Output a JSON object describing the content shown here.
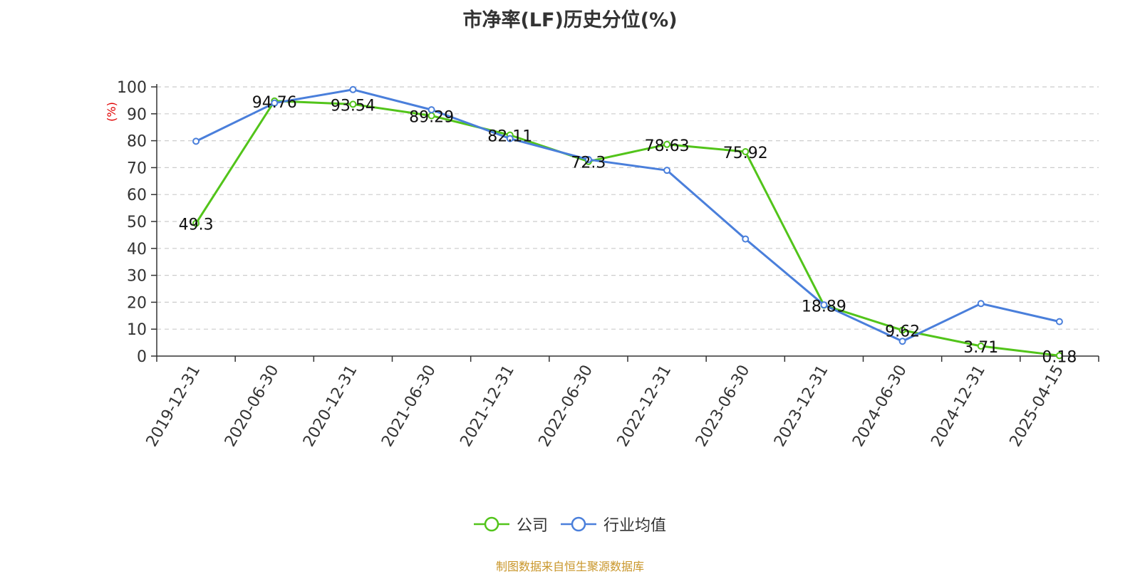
{
  "chart_data": {
    "type": "line",
    "title": "市净率(LF)历史分位(%)",
    "ylabel": "(%)",
    "categories": [
      "2019-12-31",
      "2020-06-30",
      "2020-12-31",
      "2021-06-30",
      "2021-12-31",
      "2022-06-30",
      "2022-12-31",
      "2023-06-30",
      "2023-12-31",
      "2024-06-30",
      "2024-12-31",
      "2025-04-15"
    ],
    "ylim": [
      0,
      100
    ],
    "yticks": [
      "0",
      "10",
      "20",
      "30",
      "40",
      "50",
      "60",
      "70",
      "80",
      "90",
      "100"
    ],
    "grid": true,
    "legend_position": "bottom",
    "series": [
      {
        "name": "公司",
        "color": "#52c41a",
        "values": [
          49.3,
          94.76,
          93.54,
          89.29,
          82.11,
          72.3,
          78.63,
          75.92,
          18.89,
          9.62,
          3.71,
          0.18
        ],
        "labels": [
          "49.3",
          "94.76",
          "93.54",
          "89.29",
          "82.11",
          "72.3",
          "78.63",
          "75.92",
          "18.89",
          "9.62",
          "3.71",
          "0.18"
        ]
      },
      {
        "name": "行业均值",
        "color": "#4a7fdb",
        "values": [
          79.8,
          94.0,
          99.0,
          91.5,
          80.8,
          73.0,
          69.0,
          43.5,
          19.0,
          5.5,
          19.5,
          12.8
        ]
      }
    ]
  },
  "footer": {
    "source": "制图数据来自恒生聚源数据库"
  },
  "colors": {
    "axis": "#333333",
    "grid": "#cccccc",
    "ylabel": "#e00000",
    "source": "#c9962a"
  }
}
